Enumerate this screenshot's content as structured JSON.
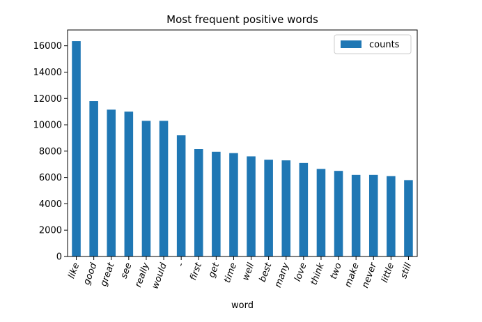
{
  "chart_data": {
    "type": "bar",
    "title": "Most frequent positive words",
    "xlabel": "word",
    "ylabel": "",
    "categories": [
      "like",
      "good",
      "great",
      "see",
      "really",
      "would",
      "-",
      "first",
      "get",
      "time",
      "well",
      "best",
      "many",
      "love",
      "think",
      "two",
      "make",
      "never",
      "little",
      "still"
    ],
    "series": [
      {
        "name": "counts",
        "values": [
          16350,
          11800,
          11150,
          11000,
          10300,
          10300,
          9200,
          8150,
          7950,
          7850,
          7600,
          7350,
          7300,
          7100,
          6650,
          6500,
          6200,
          6200,
          6100,
          5800
        ]
      }
    ],
    "yticks": [
      0,
      2000,
      4000,
      6000,
      8000,
      10000,
      12000,
      14000,
      16000
    ],
    "ylim": [
      0,
      17200
    ],
    "grid": false,
    "legend_position": "top-right",
    "bar_color": "#1f77b4"
  }
}
